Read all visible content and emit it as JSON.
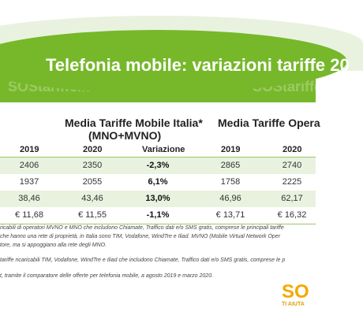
{
  "title": "Telefonia mobile: variazioni tariffe 20",
  "watermark": "SOStariffe.it",
  "tables": {
    "left_title_line1": "Media Tariffe Mobile Italia*",
    "left_title_line2": "(MNO+MVNO)",
    "right_title": "Media Tariffe Opera",
    "headers": [
      "2019",
      "2020",
      "Variazione",
      "2019",
      "2020"
    ]
  },
  "chart_data": {
    "type": "table",
    "columns": [
      "2019",
      "2020",
      "Variazione",
      "2019",
      "2020"
    ],
    "rows": [
      [
        "2406",
        "2350",
        "-2,3%",
        "2865",
        "2740"
      ],
      [
        "1937",
        "2055",
        "6,1%",
        "1758",
        "2225"
      ],
      [
        "38,46",
        "43,46",
        "13,0%",
        "46,96",
        "62,17"
      ],
      [
        "€ 11,68",
        "€ 11,55",
        "-1,1%",
        "€ 13,71",
        "€ 16,32"
      ]
    ]
  },
  "notes": [
    "ricabili di operatori MVNO e MNO che includono Chiamate, Traffico dati e/o SMS gratis, comprese le principali tariffe",
    "che hanno una rete di proprietà, in Italia sono TIM, Vodafone, WindTre e Iliad. MVNO (Mobile Virtual Network Oper",
    "tore, ma si appoggiano alla rete degli MNO.",
    "tariffe ricaricabili TIM, Vodafone, WindTre e Iliad che includono Chiamate, Traffico dati e/o SMS gratis, comprese le p",
    "t, tramite il comparatore delle offerte per telefonia mobile, a agosto 2019 e marzo 2020."
  ],
  "logo": {
    "letters": "SO",
    "tagline": "TI AIUTA"
  },
  "colors": {
    "brand_green": "#76b82a",
    "row_alt": "#e9f2df",
    "logo_orange": "#f5a800"
  }
}
